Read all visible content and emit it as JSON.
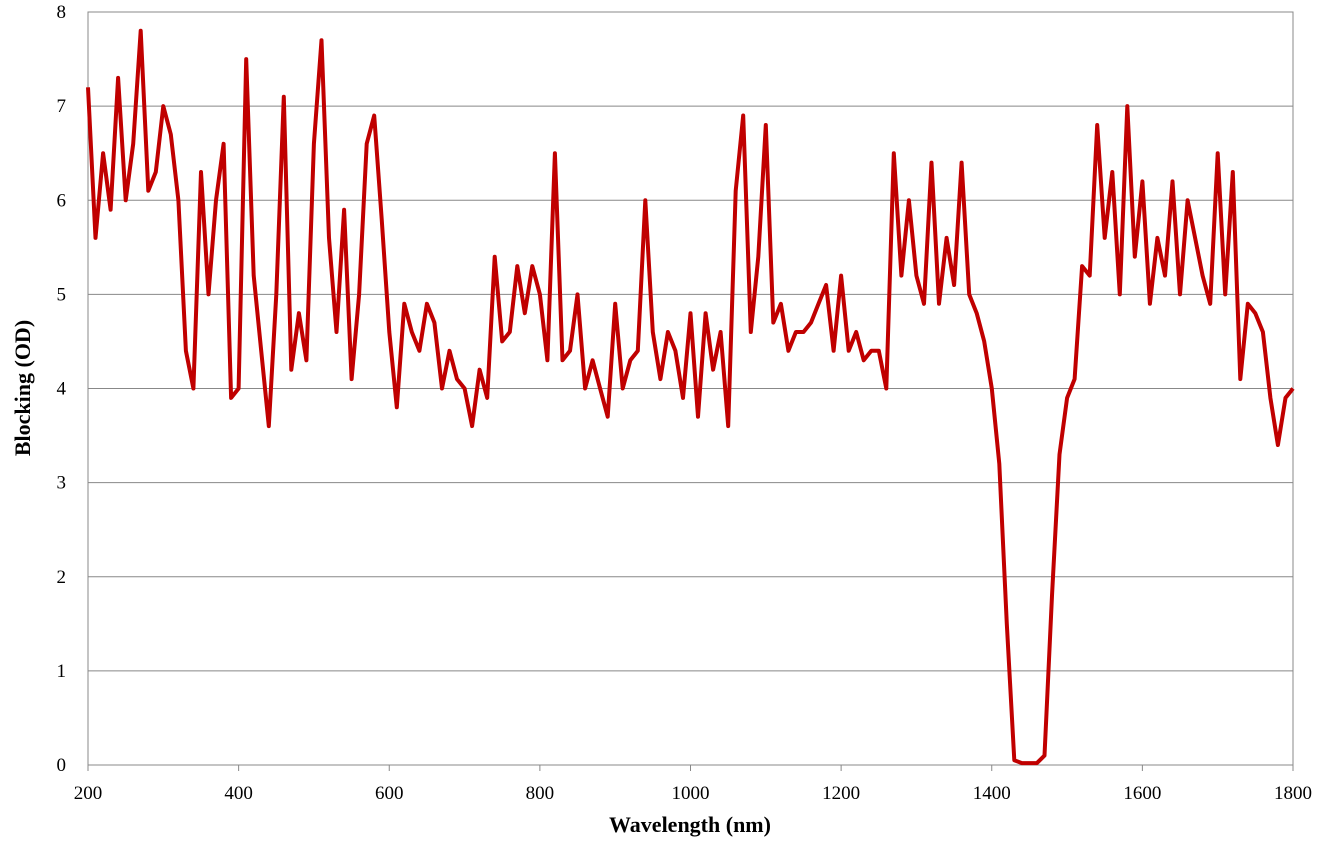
{
  "chart_data": {
    "type": "line",
    "x_label": "Wavelength (nm)",
    "y_label": "Blocking (OD)",
    "x": [
      200,
      210,
      220,
      230,
      240,
      250,
      260,
      270,
      280,
      290,
      300,
      310,
      320,
      330,
      340,
      350,
      360,
      370,
      380,
      390,
      400,
      410,
      420,
      430,
      440,
      450,
      460,
      470,
      480,
      490,
      500,
      510,
      520,
      530,
      540,
      550,
      560,
      570,
      580,
      590,
      600,
      610,
      620,
      630,
      640,
      650,
      660,
      670,
      680,
      690,
      700,
      710,
      720,
      730,
      740,
      750,
      760,
      770,
      780,
      790,
      800,
      810,
      820,
      830,
      840,
      850,
      860,
      870,
      880,
      890,
      900,
      910,
      920,
      930,
      940,
      950,
      960,
      970,
      980,
      990,
      1000,
      1010,
      1020,
      1030,
      1040,
      1050,
      1060,
      1070,
      1080,
      1090,
      1100,
      1110,
      1120,
      1130,
      1140,
      1150,
      1160,
      1170,
      1180,
      1190,
      1200,
      1210,
      1220,
      1230,
      1240,
      1250,
      1260,
      1270,
      1280,
      1290,
      1300,
      1310,
      1320,
      1330,
      1340,
      1350,
      1360,
      1370,
      1380,
      1390,
      1400,
      1410,
      1420,
      1430,
      1440,
      1450,
      1460,
      1470,
      1480,
      1490,
      1500,
      1510,
      1520,
      1530,
      1540,
      1550,
      1560,
      1570,
      1580,
      1590,
      1600,
      1610,
      1620,
      1630,
      1640,
      1650,
      1660,
      1670,
      1680,
      1690,
      1700,
      1710,
      1720,
      1730,
      1740,
      1750,
      1760,
      1770,
      1780,
      1790,
      1800
    ],
    "series": [
      {
        "name": "Blocking",
        "color": "#c00000",
        "values": [
          7.2,
          5.6,
          6.5,
          5.9,
          7.3,
          6.0,
          6.6,
          7.8,
          6.1,
          6.3,
          7.0,
          6.7,
          6.0,
          4.4,
          4.0,
          6.3,
          5.0,
          6.0,
          6.6,
          3.9,
          4.0,
          7.5,
          5.2,
          4.4,
          3.6,
          5.0,
          7.1,
          4.2,
          4.8,
          4.3,
          6.6,
          7.7,
          5.6,
          4.6,
          5.9,
          4.1,
          5.0,
          6.6,
          6.9,
          5.8,
          4.6,
          3.8,
          4.9,
          4.6,
          4.4,
          4.9,
          4.7,
          4.0,
          4.4,
          4.1,
          4.0,
          3.6,
          4.2,
          3.9,
          5.4,
          4.5,
          4.6,
          5.3,
          4.8,
          5.3,
          5.0,
          4.3,
          6.5,
          4.3,
          4.4,
          5.0,
          4.0,
          4.3,
          4.0,
          3.7,
          4.9,
          4.0,
          4.3,
          4.4,
          6.0,
          4.6,
          4.1,
          4.6,
          4.4,
          3.9,
          4.8,
          3.7,
          4.8,
          4.2,
          4.6,
          3.6,
          6.1,
          6.9,
          4.6,
          5.4,
          6.8,
          4.7,
          4.9,
          4.4,
          4.6,
          4.6,
          4.7,
          4.9,
          5.1,
          4.4,
          5.2,
          4.4,
          4.6,
          4.3,
          4.4,
          4.4,
          4.0,
          6.5,
          5.2,
          6.0,
          5.2,
          4.9,
          6.4,
          4.9,
          5.6,
          5.1,
          6.4,
          5.0,
          4.8,
          4.5,
          4.0,
          3.2,
          1.5,
          0.05,
          0.02,
          0.02,
          0.02,
          0.1,
          1.8,
          3.3,
          3.9,
          4.1,
          5.3,
          5.2,
          6.8,
          5.6,
          6.3,
          5.0,
          7.0,
          5.4,
          6.2,
          4.9,
          5.6,
          5.2,
          6.2,
          5.0,
          6.0,
          5.6,
          5.2,
          4.9,
          6.5,
          5.0,
          6.3,
          4.1,
          4.9,
          4.8,
          4.6,
          3.9,
          3.4,
          3.9,
          4.0
        ]
      }
    ],
    "xlim": [
      200,
      1800
    ],
    "xticks": [
      200,
      400,
      600,
      800,
      1000,
      1200,
      1400,
      1600,
      1800
    ],
    "ylim": [
      0,
      8
    ],
    "yticks": [
      0,
      1,
      2,
      3,
      4,
      5,
      6,
      7,
      8
    ],
    "grid": true
  }
}
